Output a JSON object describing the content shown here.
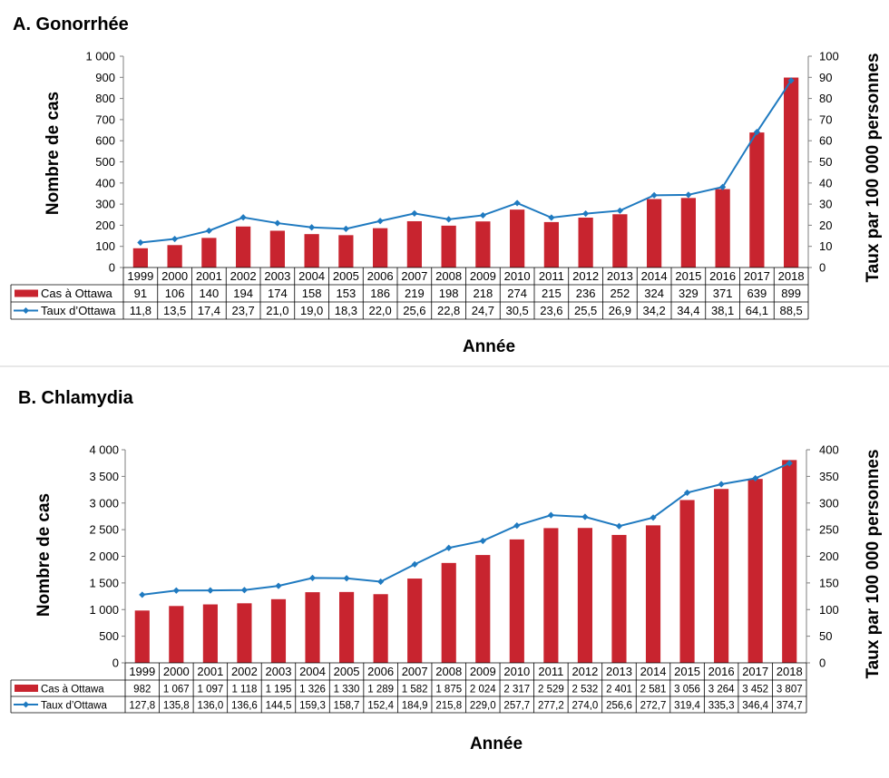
{
  "charts": [
    {
      "panel_title": "A. Gonorrhée",
      "xlabel": "Année",
      "ylabel_left": "Nombre de cas",
      "ylabel_right": "Taux par 100 000 personnes"
    },
    {
      "panel_title": "B. Chlamydia",
      "xlabel": "Année",
      "ylabel_left": "Nombre de cas",
      "ylabel_right": "Taux par 100 000 personnes"
    }
  ],
  "colors": {
    "bar": "#C8242F",
    "line": "#1F7AC0",
    "grid": "#7f7f7f",
    "divider": "#d0d0d0"
  },
  "chart_data": [
    {
      "type": "bar",
      "title": "A. Gonorrhée",
      "xlabel": "Année",
      "ylabel": "Nombre de cas",
      "y2label": "Taux par 100 000 personnes",
      "categories": [
        "1999",
        "2000",
        "2001",
        "2002",
        "2003",
        "2004",
        "2005",
        "2006",
        "2007",
        "2008",
        "2009",
        "2010",
        "2011",
        "2012",
        "2013",
        "2014",
        "2015",
        "2016",
        "2017",
        "2018"
      ],
      "ylim": [
        0,
        1000
      ],
      "y_ticks": [
        "0",
        "100",
        "200",
        "300",
        "400",
        "500",
        "600",
        "700",
        "800",
        "900",
        "1 000"
      ],
      "y2lim": [
        0,
        100
      ],
      "y2_ticks": [
        "0",
        "10",
        "20",
        "30",
        "40",
        "50",
        "60",
        "70",
        "80",
        "90",
        "100"
      ],
      "series": [
        {
          "name": "Cas à Ottawa",
          "type": "bar",
          "axis": "left",
          "values": [
            91,
            106,
            140,
            194,
            174,
            158,
            153,
            186,
            219,
            198,
            218,
            274,
            215,
            236,
            252,
            324,
            329,
            371,
            639,
            899
          ],
          "labels": [
            "91",
            "106",
            "140",
            "194",
            "174",
            "158",
            "153",
            "186",
            "219",
            "198",
            "218",
            "274",
            "215",
            "236",
            "252",
            "324",
            "329",
            "371",
            "639",
            "899"
          ]
        },
        {
          "name": "Taux d’Ottawa",
          "type": "line",
          "axis": "right",
          "values": [
            11.8,
            13.5,
            17.4,
            23.7,
            21.0,
            19.0,
            18.3,
            22.0,
            25.6,
            22.8,
            24.7,
            30.5,
            23.6,
            25.5,
            26.9,
            34.2,
            34.4,
            38.1,
            64.1,
            88.5
          ],
          "labels": [
            "11,8",
            "13,5",
            "17,4",
            "23,7",
            "21,0",
            "19,0",
            "18,3",
            "22,0",
            "25,6",
            "22,8",
            "24,7",
            "30,5",
            "23,6",
            "25,5",
            "26,9",
            "34,2",
            "34,4",
            "38,1",
            "64,1",
            "88,5"
          ]
        }
      ],
      "grid": false,
      "legend": "data table below plot"
    },
    {
      "type": "bar",
      "title": "B. Chlamydia",
      "xlabel": "Année",
      "ylabel": "Nombre de cas",
      "y2label": "Taux par 100 000 personnes",
      "categories": [
        "1999",
        "2000",
        "2001",
        "2002",
        "2003",
        "2004",
        "2005",
        "2006",
        "2007",
        "2008",
        "2009",
        "2010",
        "2011",
        "2012",
        "2013",
        "2014",
        "2015",
        "2016",
        "2017",
        "2018"
      ],
      "ylim": [
        0,
        4000
      ],
      "y_ticks": [
        "0",
        "500",
        "1 000",
        "1 500",
        "2 000",
        "2 500",
        "3 000",
        "3 500",
        "4 000"
      ],
      "y2lim": [
        0,
        400
      ],
      "y2_ticks": [
        "0",
        "50",
        "100",
        "150",
        "200",
        "250",
        "300",
        "350",
        "400"
      ],
      "series": [
        {
          "name": "Cas à Ottawa",
          "type": "bar",
          "axis": "left",
          "values": [
            982,
            1067,
            1097,
            1118,
            1195,
            1326,
            1330,
            1289,
            1582,
            1875,
            2024,
            2317,
            2529,
            2532,
            2401,
            2581,
            3056,
            3264,
            3452,
            3807
          ],
          "labels": [
            "982",
            "1 067",
            "1 097",
            "1 118",
            "1 195",
            "1 326",
            "1 330",
            "1 289",
            "1 582",
            "1 875",
            "2 024",
            "2 317",
            "2 529",
            "2 532",
            "2 401",
            "2 581",
            "3 056",
            "3 264",
            "3 452",
            "3 807"
          ]
        },
        {
          "name": "Taux d’Ottawa",
          "type": "line",
          "axis": "right",
          "values": [
            127.8,
            135.8,
            136.0,
            136.6,
            144.5,
            159.3,
            158.7,
            152.4,
            184.9,
            215.8,
            229.0,
            257.7,
            277.2,
            274.0,
            256.6,
            272.7,
            319.4,
            335.3,
            346.4,
            374.7
          ],
          "labels": [
            "127,8",
            "135,8",
            "136,0",
            "136,6",
            "144,5",
            "159,3",
            "158,7",
            "152,4",
            "184,9",
            "215,8",
            "229,0",
            "257,7",
            "277,2",
            "274,0",
            "256,6",
            "272,7",
            "319,4",
            "335,3",
            "346,4",
            "374,7"
          ]
        }
      ],
      "grid": false,
      "legend": "data table below plot"
    }
  ]
}
